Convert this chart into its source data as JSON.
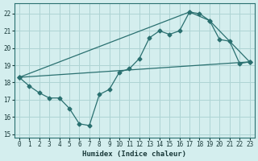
{
  "xlabel": "Humidex (Indice chaleur)",
  "bg_color": "#d4eeee",
  "grid_color": "#aed4d4",
  "line_color": "#2a7070",
  "xlim": [
    -0.5,
    23.5
  ],
  "ylim": [
    14.8,
    22.6
  ],
  "yticks": [
    15,
    16,
    17,
    18,
    19,
    20,
    21,
    22
  ],
  "xticks": [
    0,
    1,
    2,
    3,
    4,
    5,
    6,
    7,
    8,
    9,
    10,
    11,
    12,
    13,
    14,
    15,
    16,
    17,
    18,
    19,
    20,
    21,
    22,
    23
  ],
  "series1_x": [
    0,
    1,
    2,
    3,
    4,
    5,
    6,
    7,
    8,
    9,
    10,
    11,
    12,
    13,
    14,
    15,
    16,
    17,
    18,
    19,
    20,
    21,
    22,
    23
  ],
  "series1_y": [
    18.3,
    17.8,
    17.4,
    17.1,
    17.1,
    16.5,
    15.6,
    15.5,
    17.3,
    17.6,
    18.6,
    18.8,
    19.4,
    20.6,
    21.0,
    20.8,
    21.0,
    22.1,
    22.0,
    21.6,
    20.5,
    20.4,
    19.1,
    19.2
  ],
  "series2_x": [
    0,
    23
  ],
  "series2_y": [
    18.3,
    19.2
  ],
  "series3_x": [
    0,
    17,
    19,
    23
  ],
  "series3_y": [
    18.3,
    22.1,
    21.6,
    19.2
  ]
}
